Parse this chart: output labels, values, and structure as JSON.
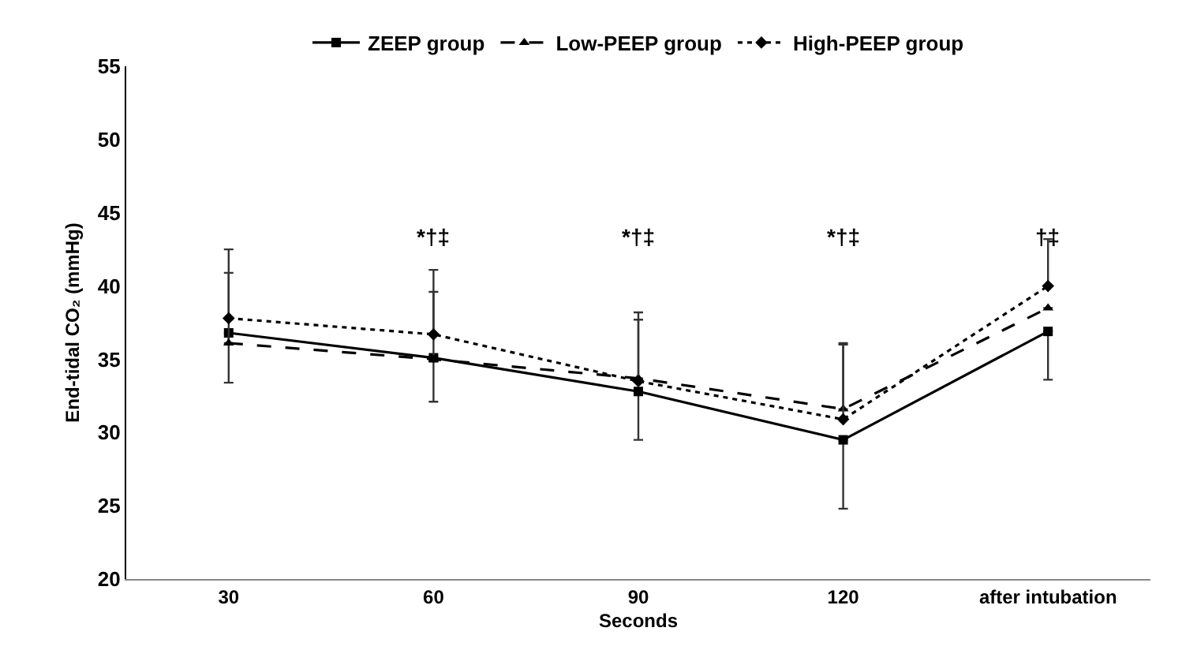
{
  "chart_data": {
    "type": "line",
    "xlabel": "Seconds",
    "ylabel": "End-tidal CO₂ (mmHg)",
    "categories": [
      "30",
      "60",
      "90",
      "120",
      "after intubation"
    ],
    "ylim": [
      20,
      55
    ],
    "yticks": [
      20,
      25,
      30,
      35,
      40,
      45,
      50,
      55
    ],
    "grid": false,
    "legend": "top",
    "series": [
      {
        "name": "ZEEP group",
        "color": "#000000",
        "line_style": "solid",
        "marker": "square",
        "values": [
          36.8,
          35.1,
          32.8,
          29.5,
          36.9
        ],
        "errors": [
          [
            33.4,
            36.8
          ],
          [
            32.1,
            35.1
          ],
          [
            29.5,
            32.8
          ],
          [
            24.8,
            29.5
          ],
          [
            33.6,
            36.9
          ]
        ]
      },
      {
        "name": "Low-PEEP group",
        "color": "#000000",
        "line_style": "dashed",
        "marker": "triangle",
        "values": [
          36.1,
          35.0,
          33.7,
          31.6,
          38.5
        ],
        "errors": [
          [
            36.1,
            40.9
          ],
          [
            35.0,
            39.6
          ],
          [
            33.7,
            37.7
          ],
          [
            31.6,
            36.0
          ],
          null
        ]
      },
      {
        "name": "High-PEEP group",
        "color": "#000000",
        "line_style": "dotted",
        "marker": "diamond",
        "values": [
          37.8,
          36.7,
          33.5,
          30.9,
          40.0
        ],
        "errors": [
          [
            37.8,
            42.5
          ],
          [
            36.7,
            41.1
          ],
          [
            33.5,
            38.2
          ],
          [
            30.9,
            36.1
          ],
          [
            40.0,
            43.2
          ]
        ]
      }
    ],
    "annotations": [
      "*†‡",
      "*†‡",
      "*†‡",
      "†‡"
    ]
  }
}
